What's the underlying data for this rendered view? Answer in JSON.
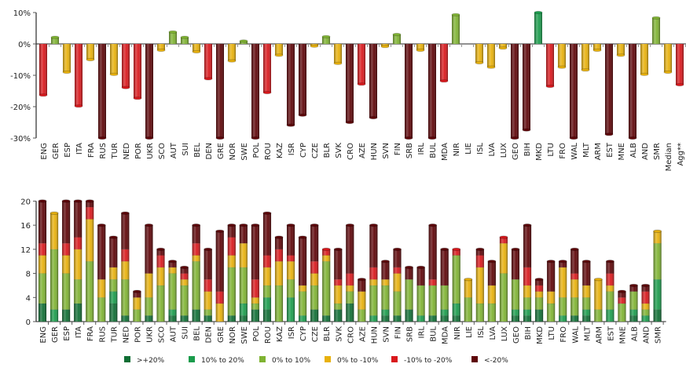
{
  "colors": {
    "gt20": "#0f6e34",
    "p10_20": "#1a9c4c",
    "p0_10": "#7fb332",
    "n0_10": "#e8b10c",
    "n10_20": "#d9181c",
    "lt20": "#5e0508"
  },
  "chart_data": [
    {
      "type": "bar",
      "title": "",
      "xlabel": "",
      "ylabel": "",
      "ylim": [
        -30,
        10
      ],
      "yticks": [
        "10%",
        "0%",
        "-10%",
        "-20%",
        "-30%"
      ],
      "ytick_values": [
        10,
        0,
        -10,
        -20,
        -30
      ],
      "categories": [
        "ENG",
        "GER",
        "ESP",
        "ITA",
        "FRA",
        "RUS",
        "TUR",
        "NED",
        "POR",
        "UKR",
        "SCO",
        "AUT",
        "SUI",
        "BEL",
        "DEN",
        "GRE",
        "NOR",
        "SWE",
        "POL",
        "ROU",
        "KAZ",
        "ISR",
        "CYP",
        "CZE",
        "BLR",
        "SVK",
        "CRO",
        "AZE",
        "HUN",
        "SVN",
        "FIN",
        "SRB",
        "IRL",
        "BUL",
        "MDA",
        "NIR",
        "LIE",
        "ISL",
        "LVA",
        "LUX",
        "GEO",
        "BIH",
        "MKD",
        "LTU",
        "FRO",
        "WAL",
        "MLT",
        "ARM",
        "EST",
        "MNE",
        "ALB",
        "AND",
        "SMR",
        "Median",
        "Agg**"
      ],
      "values": [
        -16.3,
        2.1,
        -9,
        -19.8,
        -5,
        -30,
        -9.7,
        -13.9,
        -17.3,
        -30,
        -2,
        3.8,
        2.1,
        -2.5,
        -11.1,
        -30,
        -5.4,
        0.9,
        -30,
        -15.5,
        -3.6,
        -25.9,
        -22.7,
        -0.7,
        2.3,
        -6.2,
        -25,
        -12.8,
        -23.5,
        -0.8,
        3,
        -30,
        -2,
        -30,
        -11.8,
        9.3,
        0,
        -6,
        -7.4,
        -1.3,
        -30,
        -27.4,
        10,
        -13.5,
        -7.4,
        -30,
        -8.3,
        -2,
        -28.8,
        -3.6,
        -30,
        -9.7,
        8.3,
        -9,
        -13
      ]
    },
    {
      "type": "bar",
      "stacked": true,
      "ylim": [
        0,
        20
      ],
      "yticks": [
        "20",
        "16",
        "12",
        "8",
        "4",
        "0"
      ],
      "ytick_values": [
        20,
        16,
        12,
        8,
        4,
        0
      ],
      "legend_position": "bottom",
      "categories": [
        "ENG",
        "GER",
        "ESP",
        "ITA",
        "FRA",
        "RUS",
        "TUR",
        "NED",
        "POR",
        "UKR",
        "SCO",
        "AUT",
        "SUI",
        "BEL",
        "DEN",
        "GRE",
        "NOR",
        "SWE",
        "POL",
        "ROU",
        "KAZ",
        "ISR",
        "CYP",
        "CZE",
        "BLR",
        "SVK",
        "CRO",
        "AZE",
        "HUN",
        "SVN",
        "FIN",
        "SRB",
        "IRL",
        "BUL",
        "MDA",
        "NIR",
        "LIE",
        "ISL",
        "LVA",
        "LUX",
        "GEO",
        "BIH",
        "MKD",
        "LTU",
        "FRO",
        "WAL",
        "MLT",
        "ARM",
        "EST",
        "MNE",
        "ALB",
        "AND",
        "SMR"
      ],
      "series": [
        {
          "name": ">+20%",
          "color_key": "gt20",
          "values": [
            3,
            0,
            2,
            3,
            0,
            0,
            3,
            1,
            0,
            1,
            0,
            1,
            1,
            2,
            1,
            0,
            1,
            1,
            2,
            2,
            0,
            0,
            0,
            2,
            1,
            2,
            3,
            0,
            0,
            1,
            1,
            2,
            0,
            1,
            1,
            1,
            0,
            0,
            0,
            0,
            1,
            1,
            2,
            0,
            0,
            1,
            1,
            0,
            0,
            0,
            1,
            0,
            2
          ]
        },
        {
          "name": "10% to 20%",
          "color_key": "p10_20",
          "values": [
            0,
            2,
            0,
            0,
            0,
            0,
            2,
            0,
            0,
            0,
            0,
            1,
            0,
            0,
            0,
            0,
            0,
            2,
            0,
            2,
            0,
            4,
            1,
            0,
            0,
            0,
            0,
            0,
            1,
            1,
            0,
            0,
            1,
            0,
            1,
            2,
            0,
            0,
            0,
            0,
            1,
            1,
            0,
            0,
            1,
            0,
            1,
            0,
            2,
            0,
            1,
            1,
            5
          ]
        },
        {
          "name": "0% to 10%",
          "color_key": "p0_10",
          "values": [
            5,
            10,
            6,
            4,
            10,
            4,
            2,
            6,
            2,
            3,
            6,
            6,
            5,
            8,
            1,
            0,
            8,
            6,
            1,
            2,
            6,
            3,
            4,
            4,
            9,
            1,
            2,
            2,
            5,
            4,
            4,
            5,
            5,
            5,
            4,
            8,
            4,
            3,
            3,
            8,
            5,
            2,
            2,
            3,
            3,
            3,
            2,
            2,
            3,
            3,
            3,
            1,
            6
          ]
        },
        {
          "name": "0% to -10%",
          "color_key": "n0_10",
          "values": [
            3,
            6,
            3,
            5,
            7,
            3,
            2,
            3,
            2,
            4,
            3,
            1,
            1,
            1,
            3,
            3,
            2,
            4,
            1,
            3,
            4,
            3,
            1,
            2,
            1,
            3,
            1,
            3,
            1,
            1,
            3,
            0,
            0,
            0,
            0,
            0,
            3,
            6,
            3,
            5,
            0,
            2,
            1,
            2,
            5,
            3,
            2,
            5,
            1,
            0,
            0,
            1,
            2
          ]
        },
        {
          "name": "-10% to -20%",
          "color_key": "n10_20",
          "values": [
            2,
            0,
            2,
            2,
            2,
            0,
            0,
            2,
            0,
            0,
            2,
            0,
            1,
            2,
            2,
            2,
            3,
            0,
            3,
            2,
            2,
            1,
            0,
            2,
            1,
            1,
            2,
            0,
            2,
            0,
            1,
            0,
            0,
            1,
            0,
            1,
            0,
            2,
            0,
            1,
            0,
            3,
            1,
            0,
            0,
            1,
            0,
            0,
            2,
            1,
            0,
            2,
            0
          ]
        },
        {
          "name": "<-20%",
          "color_key": "lt20",
          "values": [
            7,
            0,
            7,
            6,
            1,
            9,
            5,
            6,
            1,
            8,
            1,
            1,
            1,
            3,
            5,
            10,
            2,
            3,
            9,
            7,
            2,
            5,
            8,
            6,
            0,
            5,
            8,
            2,
            7,
            3,
            3,
            2,
            3,
            9,
            6,
            0,
            0,
            1,
            4,
            0,
            5,
            7,
            1,
            5,
            1,
            4,
            4,
            0,
            2,
            1,
            1,
            1,
            0
          ]
        }
      ]
    }
  ]
}
